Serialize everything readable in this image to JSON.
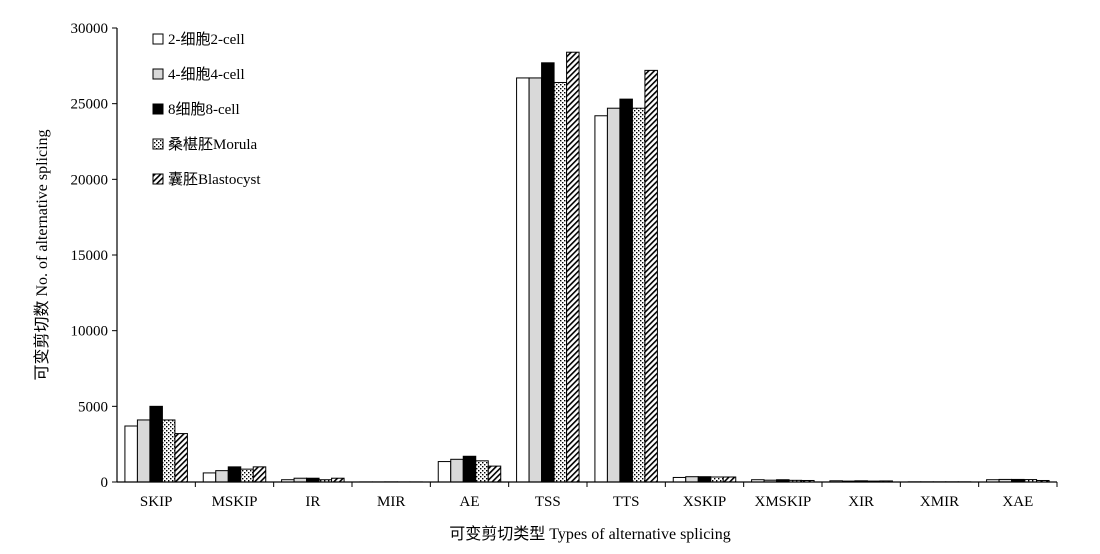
{
  "chart_data": {
    "type": "bar",
    "title": "",
    "xlabel": "可变剪切类型 Types of alternative splicing",
    "ylabel": "可变剪切数 No. of alternative splicing",
    "ylim": [
      0,
      30000
    ],
    "yticks": [
      "0",
      "5000",
      "10000",
      "15000",
      "20000",
      "25000",
      "30000"
    ],
    "ytick_values": [
      0,
      5000,
      10000,
      15000,
      20000,
      25000,
      30000
    ],
    "grid": false,
    "legend_position": "top-left",
    "categories": [
      "SKIP",
      "MSKIP",
      "IR",
      "MIR",
      "AE",
      "TSS",
      "TTS",
      "XSKIP",
      "XMSKIP",
      "XIR",
      "XMIR",
      "XAE"
    ],
    "series": [
      {
        "name": "2-细胞2-cell",
        "fill": "white",
        "values": [
          3700,
          600,
          150,
          5,
          1350,
          26700,
          24200,
          300,
          150,
          80,
          10,
          150
        ]
      },
      {
        "name": "4-细胞4-cell",
        "fill": "gray",
        "values": [
          4100,
          750,
          250,
          5,
          1500,
          26700,
          24700,
          350,
          120,
          60,
          10,
          170
        ]
      },
      {
        "name": "8细胞8-cell",
        "fill": "black",
        "values": [
          5000,
          1000,
          250,
          8,
          1700,
          27700,
          25300,
          350,
          150,
          80,
          10,
          170
        ]
      },
      {
        "name": "桑椹胚Morula",
        "fill": "dotted",
        "values": [
          4100,
          850,
          150,
          5,
          1400,
          26400,
          24700,
          330,
          110,
          60,
          10,
          160
        ]
      },
      {
        "name": "囊胚Blastocyst",
        "fill": "hatched",
        "values": [
          3200,
          1000,
          250,
          5,
          1050,
          28400,
          27200,
          330,
          100,
          70,
          10,
          100
        ]
      }
    ]
  }
}
